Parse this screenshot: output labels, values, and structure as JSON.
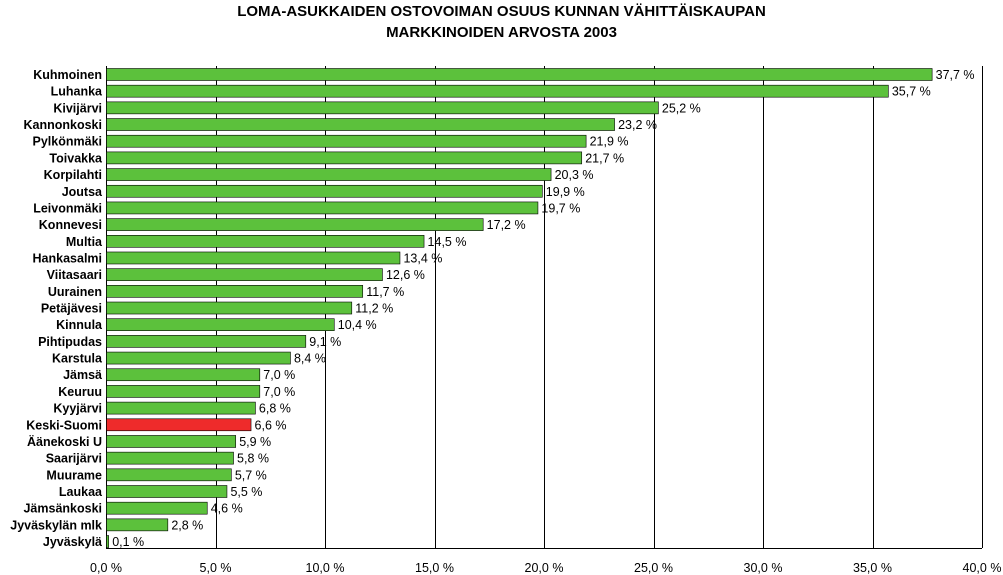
{
  "chart_data": {
    "type": "bar",
    "orientation": "horizontal",
    "title": "LOMA-ASUKKAIDEN OSTOVOIMAN OSUUS KUNNAN VÄHITTÄISKAUPAN",
    "subtitle": "MARKKINOIDEN ARVOSTA 2003",
    "categories": [
      "Kuhmoinen",
      "Luhanka",
      "Kivijärvi",
      "Kannonkoski",
      "Pylkönmäki",
      "Toivakka",
      "Korpilahti",
      "Joutsa",
      "Leivonmäki",
      "Konnevesi",
      "Multia",
      "Hankasalmi",
      "Viitasaari",
      "Uurainen",
      "Petäjävesi",
      "Kinnula",
      "Pihtipudas",
      "Karstula",
      "Jämsä",
      "Keuruu",
      "Kyyjärvi",
      "Keski-Suomi",
      "Äänekoski U",
      "Saarijärvi",
      "Muurame",
      "Laukaa",
      "Jämsänkoski",
      "Jyväskylän mlk",
      "Jyväskylä"
    ],
    "values": [
      37.7,
      35.7,
      25.2,
      23.2,
      21.9,
      21.7,
      20.3,
      19.9,
      19.7,
      17.2,
      14.5,
      13.4,
      12.6,
      11.7,
      11.2,
      10.4,
      9.1,
      8.4,
      7.0,
      7.0,
      6.8,
      6.6,
      5.9,
      5.8,
      5.7,
      5.5,
      4.6,
      2.8,
      0.1
    ],
    "data_labels": [
      "37,7 %",
      "35,7 %",
      "25,2 %",
      "23,2 %",
      "21,9 %",
      "21,7 %",
      "20,3 %",
      "19,9 %",
      "19,7 %",
      "17,2 %",
      "14,5 %",
      "13,4 %",
      "12,6 %",
      "11,7 %",
      "11,2 %",
      "10,4 %",
      "9,1 %",
      "8,4 %",
      "7,0 %",
      "7,0 %",
      "6,8 %",
      "6,6 %",
      "5,9 %",
      "5,8 %",
      "5,7 %",
      "5,5 %",
      "4,6 %",
      "2,8 %",
      "0,1 %"
    ],
    "highlight_category": "Keski-Suomi",
    "xlim": [
      0,
      40
    ],
    "x_ticks": [
      0,
      5,
      10,
      15,
      20,
      25,
      30,
      35,
      40
    ],
    "x_tick_labels": [
      "0,0 %",
      "5,0 %",
      "10,0 %",
      "15,0 %",
      "20,0 %",
      "25,0 %",
      "30,0 %",
      "35,0 %",
      "40,0 %"
    ],
    "grid": "vertical",
    "legend": "none",
    "colors": {
      "bar": "#5cc13c",
      "highlight": "#ee2b2b",
      "bar_border": "#000000",
      "grid": "#000000"
    }
  }
}
